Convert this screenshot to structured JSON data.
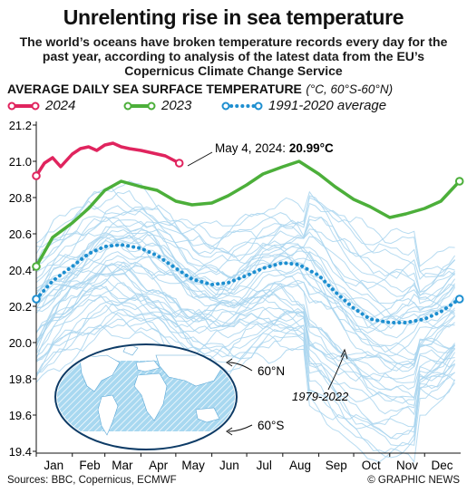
{
  "header": {
    "title": "Unrelenting rise in sea temperature",
    "subtitle": "The world’s oceans have broken temperature records every day for the past year, according to analysis of the latest data from the EU’s Copernicus Climate Change Service"
  },
  "footer": {
    "sources": "Sources: BBC, Copernicus, ECMWF",
    "credit": "© GRAPHIC NEWS"
  },
  "colors": {
    "series_2024": "#e0245e",
    "series_2023": "#4caf3a",
    "average": "#1e8fd0",
    "history": "#a9d5ee",
    "map_ocean": "#a8d8f0",
    "map_land": "#ffffff"
  },
  "chart_data": {
    "type": "line",
    "ylabel": "AVERAGE DAILY SEA SURFACE TEMPERATURE",
    "ylabel_unit": "(°C, 60°S-60°N)",
    "ylim": [
      19.4,
      21.2
    ],
    "yticks": [
      "21.2",
      "21.0",
      "20.8",
      "20.6",
      "20.4",
      "20.2",
      "20.0",
      "19.8",
      "19.6",
      "19.4"
    ],
    "categories": [
      "Jan",
      "Feb",
      "Mar",
      "Apr",
      "May",
      "Jun",
      "Jul",
      "Aug",
      "Sep",
      "Oct",
      "Nov",
      "Dec"
    ],
    "grid": false,
    "legend_position": "top-left",
    "series": [
      {
        "name": "2024",
        "style": "solid",
        "x": [
          "Jan 1",
          "Jan 8",
          "Jan 15",
          "Jan 22",
          "Feb 1",
          "Feb 8",
          "Feb 15",
          "Feb 22",
          "Mar 1",
          "Mar 8",
          "Mar 15",
          "Mar 22",
          "Apr 1",
          "Apr 8",
          "Apr 15",
          "Apr 22",
          "May 4"
        ],
        "values": [
          20.92,
          20.99,
          21.02,
          20.97,
          21.04,
          21.07,
          21.08,
          21.06,
          21.09,
          21.1,
          21.08,
          21.07,
          21.06,
          21.05,
          21.04,
          21.03,
          20.99
        ]
      },
      {
        "name": "2023",
        "style": "solid",
        "x": [
          "Jan 1",
          "Jan 15",
          "Feb 1",
          "Feb 15",
          "Mar 1",
          "Mar 15",
          "Apr 1",
          "Apr 15",
          "May 1",
          "May 15",
          "Jun 1",
          "Jun 15",
          "Jul 1",
          "Jul 15",
          "Aug 1",
          "Aug 15",
          "Sep 1",
          "Sep 15",
          "Oct 1",
          "Oct 15",
          "Nov 1",
          "Nov 15",
          "Dec 1",
          "Dec 15",
          "Dec 31"
        ],
        "values": [
          20.42,
          20.58,
          20.66,
          20.74,
          20.84,
          20.89,
          20.86,
          20.84,
          20.78,
          20.76,
          20.77,
          20.81,
          20.87,
          20.93,
          20.97,
          21.0,
          20.93,
          20.86,
          20.79,
          20.75,
          20.69,
          20.71,
          20.74,
          20.78,
          20.89
        ]
      },
      {
        "name": "1991-2020 average",
        "style": "dotted",
        "x": [
          "Jan 1",
          "Jan 15",
          "Feb 1",
          "Feb 15",
          "Mar 1",
          "Mar 15",
          "Apr 1",
          "Apr 15",
          "May 1",
          "May 15",
          "Jun 1",
          "Jun 15",
          "Jul 1",
          "Jul 15",
          "Aug 1",
          "Aug 15",
          "Sep 1",
          "Sep 15",
          "Oct 1",
          "Oct 15",
          "Nov 1",
          "Nov 15",
          "Dec 1",
          "Dec 15",
          "Dec 31"
        ],
        "values": [
          20.24,
          20.34,
          20.42,
          20.49,
          20.53,
          20.54,
          20.52,
          20.48,
          20.41,
          20.35,
          20.32,
          20.33,
          20.37,
          20.41,
          20.44,
          20.43,
          20.37,
          20.28,
          20.19,
          20.13,
          20.11,
          20.11,
          20.13,
          20.17,
          20.24
        ]
      }
    ],
    "annotations": {
      "latest_label": "May 4, 2024:",
      "latest_value": "20.99°C",
      "history_label": "1979-2022",
      "map_north": "60°N",
      "map_south": "60°S"
    }
  }
}
